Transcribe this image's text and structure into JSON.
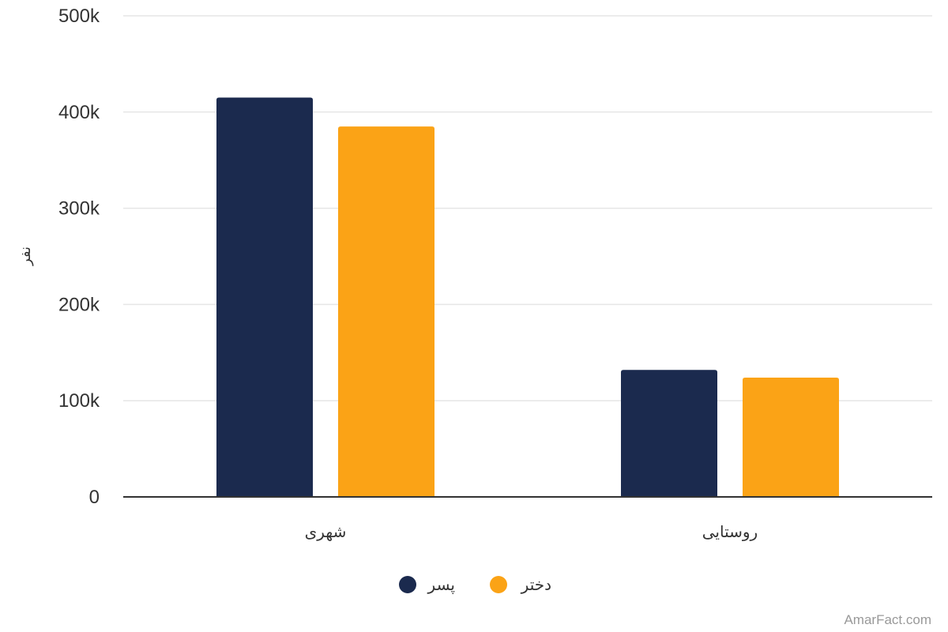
{
  "chart_data": {
    "type": "bar",
    "categories": [
      "شهری",
      "روستایی"
    ],
    "series": [
      {
        "name": "پسر",
        "values": [
          415000,
          132000
        ],
        "color": "#1b2a4e"
      },
      {
        "name": "دختر",
        "values": [
          385000,
          124000
        ],
        "color": "#fba316"
      }
    ],
    "ylabel": "نفر",
    "xlabel": "",
    "ylim": [
      0,
      500000
    ],
    "yticks": [
      0,
      100000,
      200000,
      300000,
      400000,
      500000
    ],
    "ytick_labels": [
      "0",
      "100k",
      "200k",
      "300k",
      "400k",
      "500k"
    ],
    "grid": true,
    "legend_position": "bottom-center"
  },
  "credit": "AmarFact.com"
}
